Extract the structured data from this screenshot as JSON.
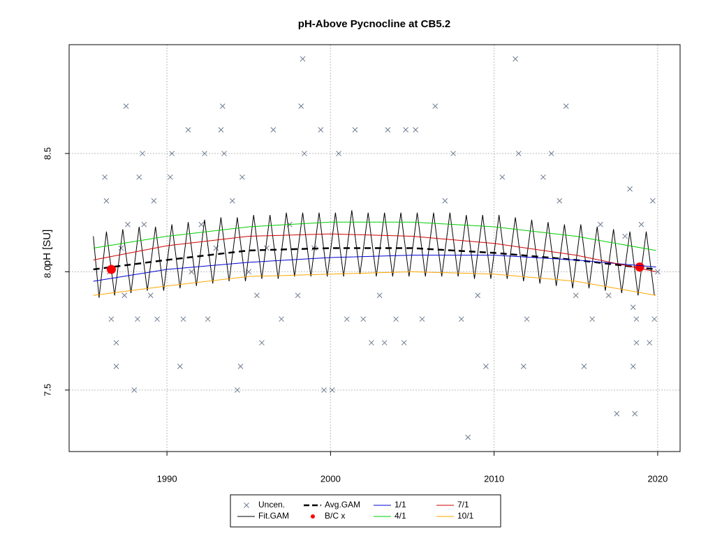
{
  "chart_data": {
    "type": "scatter-lines",
    "title": "pH-Above Pycnocline at CB5.2",
    "ylabel": "pH [SU]",
    "xlim": [
      1984.02,
      2021.37
    ],
    "ylim": [
      7.24,
      8.96
    ],
    "xticks": [
      1990,
      2000,
      2010,
      2020
    ],
    "yticks": [
      {
        "value": 7.5,
        "label": "7.5"
      },
      {
        "value": 8.0,
        "label": "8.0"
      },
      {
        "value": 8.5,
        "label": "8.5"
      }
    ],
    "grid": true,
    "series": [
      {
        "name": "Uncen.",
        "style": "points",
        "color": "#6b7a8f",
        "x": [
          1986.2,
          1986.3,
          1986.5,
          1986.6,
          1986.9,
          1986.9,
          1987.2,
          1987.4,
          1987.5,
          1987.6,
          1988.0,
          1988.2,
          1988.3,
          1988.5,
          1988.6,
          1989.0,
          1989.2,
          1989.4,
          1990.2,
          1990.3,
          1990.8,
          1991.0,
          1991.3,
          1991.5,
          1992.1,
          1992.3,
          1992.5,
          1993.0,
          1993.3,
          1993.4,
          1993.5,
          1994.0,
          1994.3,
          1994.5,
          1994.6,
          1995.0,
          1995.5,
          1995.8,
          1996.1,
          1996.5,
          1997.0,
          1997.5,
          1998.0,
          1998.2,
          1998.3,
          1998.4,
          1999.0,
          1999.4,
          1999.6,
          2000.1,
          2000.5,
          2001.0,
          2001.5,
          2002.0,
          2002.5,
          2003.0,
          2003.3,
          2003.5,
          2004.0,
          2004.5,
          2004.6,
          2005.2,
          2005.6,
          2006.4,
          2007.0,
          2007.5,
          2008.0,
          2008.4,
          2009.0,
          2009.5,
          2010.5,
          2011.3,
          2011.5,
          2011.8,
          2012.0,
          2013.0,
          2013.5,
          2014.0,
          2014.4,
          2015.0,
          2015.5,
          2016.0,
          2016.5,
          2017.0,
          2017.5,
          2018.0,
          2018.3,
          2018.5,
          2018.6,
          2018.7,
          2019.0,
          2019.5,
          2019.7,
          2019.8,
          2020.0,
          2018.5,
          2018.7
        ],
        "values": [
          8.4,
          8.3,
          8.0,
          7.8,
          7.7,
          7.6,
          8.1,
          7.9,
          8.7,
          8.2,
          7.5,
          7.8,
          8.4,
          8.5,
          8.2,
          7.9,
          8.3,
          7.8,
          8.4,
          8.5,
          7.6,
          7.8,
          8.6,
          8.0,
          8.2,
          8.5,
          7.8,
          8.1,
          8.6,
          8.7,
          8.5,
          8.3,
          7.5,
          7.6,
          8.4,
          8.0,
          7.9,
          7.7,
          8.1,
          8.6,
          7.8,
          8.2,
          7.9,
          8.7,
          8.9,
          8.5,
          8.1,
          8.6,
          7.5,
          7.5,
          8.5,
          7.8,
          8.6,
          7.8,
          7.7,
          7.9,
          7.7,
          8.6,
          7.8,
          7.7,
          8.6,
          8.6,
          7.8,
          8.7,
          8.3,
          8.5,
          7.8,
          7.3,
          7.9,
          7.6,
          8.4,
          8.9,
          8.5,
          7.6,
          7.8,
          8.4,
          8.5,
          8.3,
          8.7,
          7.9,
          7.6,
          7.8,
          8.2,
          7.9,
          7.4,
          8.15,
          8.35,
          7.6,
          7.4,
          7.7,
          8.2,
          7.7,
          8.3,
          7.8,
          8.0,
          7.85,
          7.8
        ]
      },
      {
        "name": "Fit.GAM",
        "style": "line",
        "color": "#000000",
        "x": [
          1985.5,
          1985.85,
          1986.3,
          1986.8,
          1987.3,
          1987.8,
          1988.3,
          1988.8,
          1989.3,
          1989.8,
          1990.3,
          1990.8,
          1991.3,
          1991.8,
          1992.3,
          1992.8,
          1993.3,
          1993.8,
          1994.3,
          1994.8,
          1995.3,
          1995.8,
          1996.3,
          1996.8,
          1997.3,
          1997.8,
          1998.3,
          1998.8,
          1999.3,
          1999.8,
          2000.3,
          2000.8,
          2001.3,
          2001.8,
          2002.3,
          2002.8,
          2003.3,
          2003.8,
          2004.3,
          2004.8,
          2005.3,
          2005.8,
          2006.3,
          2006.8,
          2007.3,
          2007.8,
          2008.3,
          2008.8,
          2009.3,
          2009.8,
          2010.3,
          2010.8,
          2011.3,
          2011.8,
          2012.3,
          2012.8,
          2013.3,
          2013.8,
          2014.3,
          2014.8,
          2015.3,
          2015.8,
          2016.3,
          2016.8,
          2017.3,
          2017.8,
          2018.3,
          2018.8,
          2019.3,
          2019.8
        ],
        "values": [
          8.15,
          7.89,
          8.17,
          7.9,
          8.18,
          7.91,
          8.19,
          7.92,
          8.19,
          7.92,
          8.2,
          7.93,
          8.21,
          7.94,
          8.22,
          7.95,
          8.23,
          7.96,
          8.23,
          7.96,
          8.24,
          7.97,
          8.24,
          7.97,
          8.25,
          7.98,
          8.25,
          7.98,
          8.25,
          7.98,
          8.25,
          7.98,
          8.26,
          7.99,
          8.25,
          7.98,
          8.25,
          7.98,
          8.25,
          7.98,
          8.25,
          7.98,
          8.25,
          7.98,
          8.25,
          7.98,
          8.24,
          7.97,
          8.24,
          7.97,
          8.24,
          7.97,
          8.23,
          7.96,
          8.22,
          7.95,
          8.21,
          7.94,
          8.2,
          7.93,
          8.2,
          7.93,
          8.19,
          7.92,
          8.18,
          7.91,
          8.17,
          7.9,
          8.17,
          7.9
        ]
      },
      {
        "name": "Avg.GAM",
        "style": "dashed",
        "color": "#000000",
        "x": [
          1985.5,
          1990,
          1995,
          2000,
          2005,
          2010,
          2015,
          2019.9
        ],
        "values": [
          8.01,
          8.05,
          8.09,
          8.1,
          8.1,
          8.08,
          8.05,
          8.01
        ]
      },
      {
        "name": "B/C x",
        "style": "dots",
        "color": "#ff0000",
        "x": [
          1986.6,
          2018.9
        ],
        "values": [
          8.01,
          8.02
        ]
      },
      {
        "name": "1/1",
        "style": "line",
        "color": "#0000cc",
        "x": [
          1985.5,
          1990,
          1995,
          2000,
          2005,
          2010,
          2015,
          2019.9
        ],
        "values": [
          7.96,
          8.01,
          8.04,
          8.06,
          8.07,
          8.07,
          8.05,
          8.02
        ]
      },
      {
        "name": "4/1",
        "style": "line",
        "color": "#00cc00",
        "x": [
          1985.5,
          1990,
          1995,
          2000,
          2005,
          2010,
          2015,
          2019.9
        ],
        "values": [
          8.1,
          8.15,
          8.19,
          8.21,
          8.21,
          8.19,
          8.15,
          8.09
        ]
      },
      {
        "name": "7/1",
        "style": "line",
        "color": "#cc0000",
        "x": [
          1985.5,
          1990,
          1995,
          2000,
          2005,
          2010,
          2015,
          2019.9
        ],
        "values": [
          8.05,
          8.11,
          8.15,
          8.16,
          8.15,
          8.12,
          8.07,
          8.0
        ]
      },
      {
        "name": "10/1",
        "style": "line",
        "color": "#ffa500",
        "x": [
          1985.5,
          1990,
          1995,
          2000,
          2005,
          2010,
          2015,
          2019.9
        ],
        "values": [
          7.9,
          7.94,
          7.98,
          7.99,
          8.0,
          7.99,
          7.96,
          7.9
        ]
      }
    ]
  }
}
